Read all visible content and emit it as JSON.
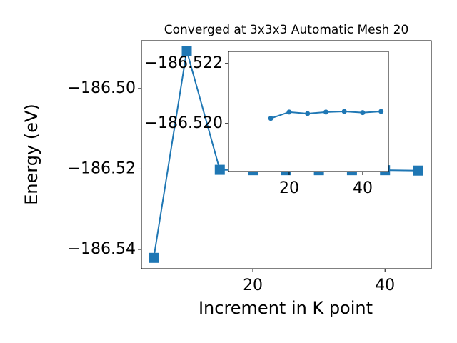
{
  "chart_data": [
    {
      "type": "line",
      "title": "Converged at 3x3x3 Automatic Mesh 20",
      "xlabel": "Increment in K point",
      "ylabel": "Energy (eV)",
      "x": [
        5,
        10,
        15,
        20,
        25,
        30,
        35,
        40,
        45
      ],
      "series": [
        {
          "name": "Energy",
          "color": "#1f77b4",
          "marker": "square",
          "values": [
            -186.5421,
            -186.4906,
            -186.5202,
            -186.5203,
            -186.5203,
            -186.5203,
            -186.5203,
            -186.5203,
            -186.5204
          ]
        }
      ],
      "xlim": [
        3.14,
        47.0
      ],
      "ylim": [
        -186.5448,
        -186.4881
      ],
      "xticks": [
        20,
        40
      ],
      "yticks": [
        {
          "value": -186.54,
          "label": "−186.54"
        },
        {
          "value": -186.52,
          "label": "−186.52"
        },
        {
          "value": -186.5,
          "label": "−186.50"
        }
      ]
    },
    {
      "type": "line",
      "inset": true,
      "x": [
        15,
        20,
        25,
        30,
        35,
        40,
        45
      ],
      "series": [
        {
          "name": "Energy",
          "color": "#1f77b4",
          "marker": "circle",
          "values": [
            -186.52017,
            -186.52038,
            -186.52033,
            -186.52038,
            -186.5204,
            -186.52036,
            -186.5204
          ]
        }
      ],
      "xlim": [
        3.5,
        47.0
      ],
      "ylim": [
        -186.5184,
        -186.5224
      ],
      "y_inverted": true,
      "xticks": [
        20,
        40
      ],
      "yticks": [
        {
          "value": -186.52,
          "label": "−186.520"
        },
        {
          "value": -186.522,
          "label": "−186.522"
        }
      ]
    }
  ]
}
